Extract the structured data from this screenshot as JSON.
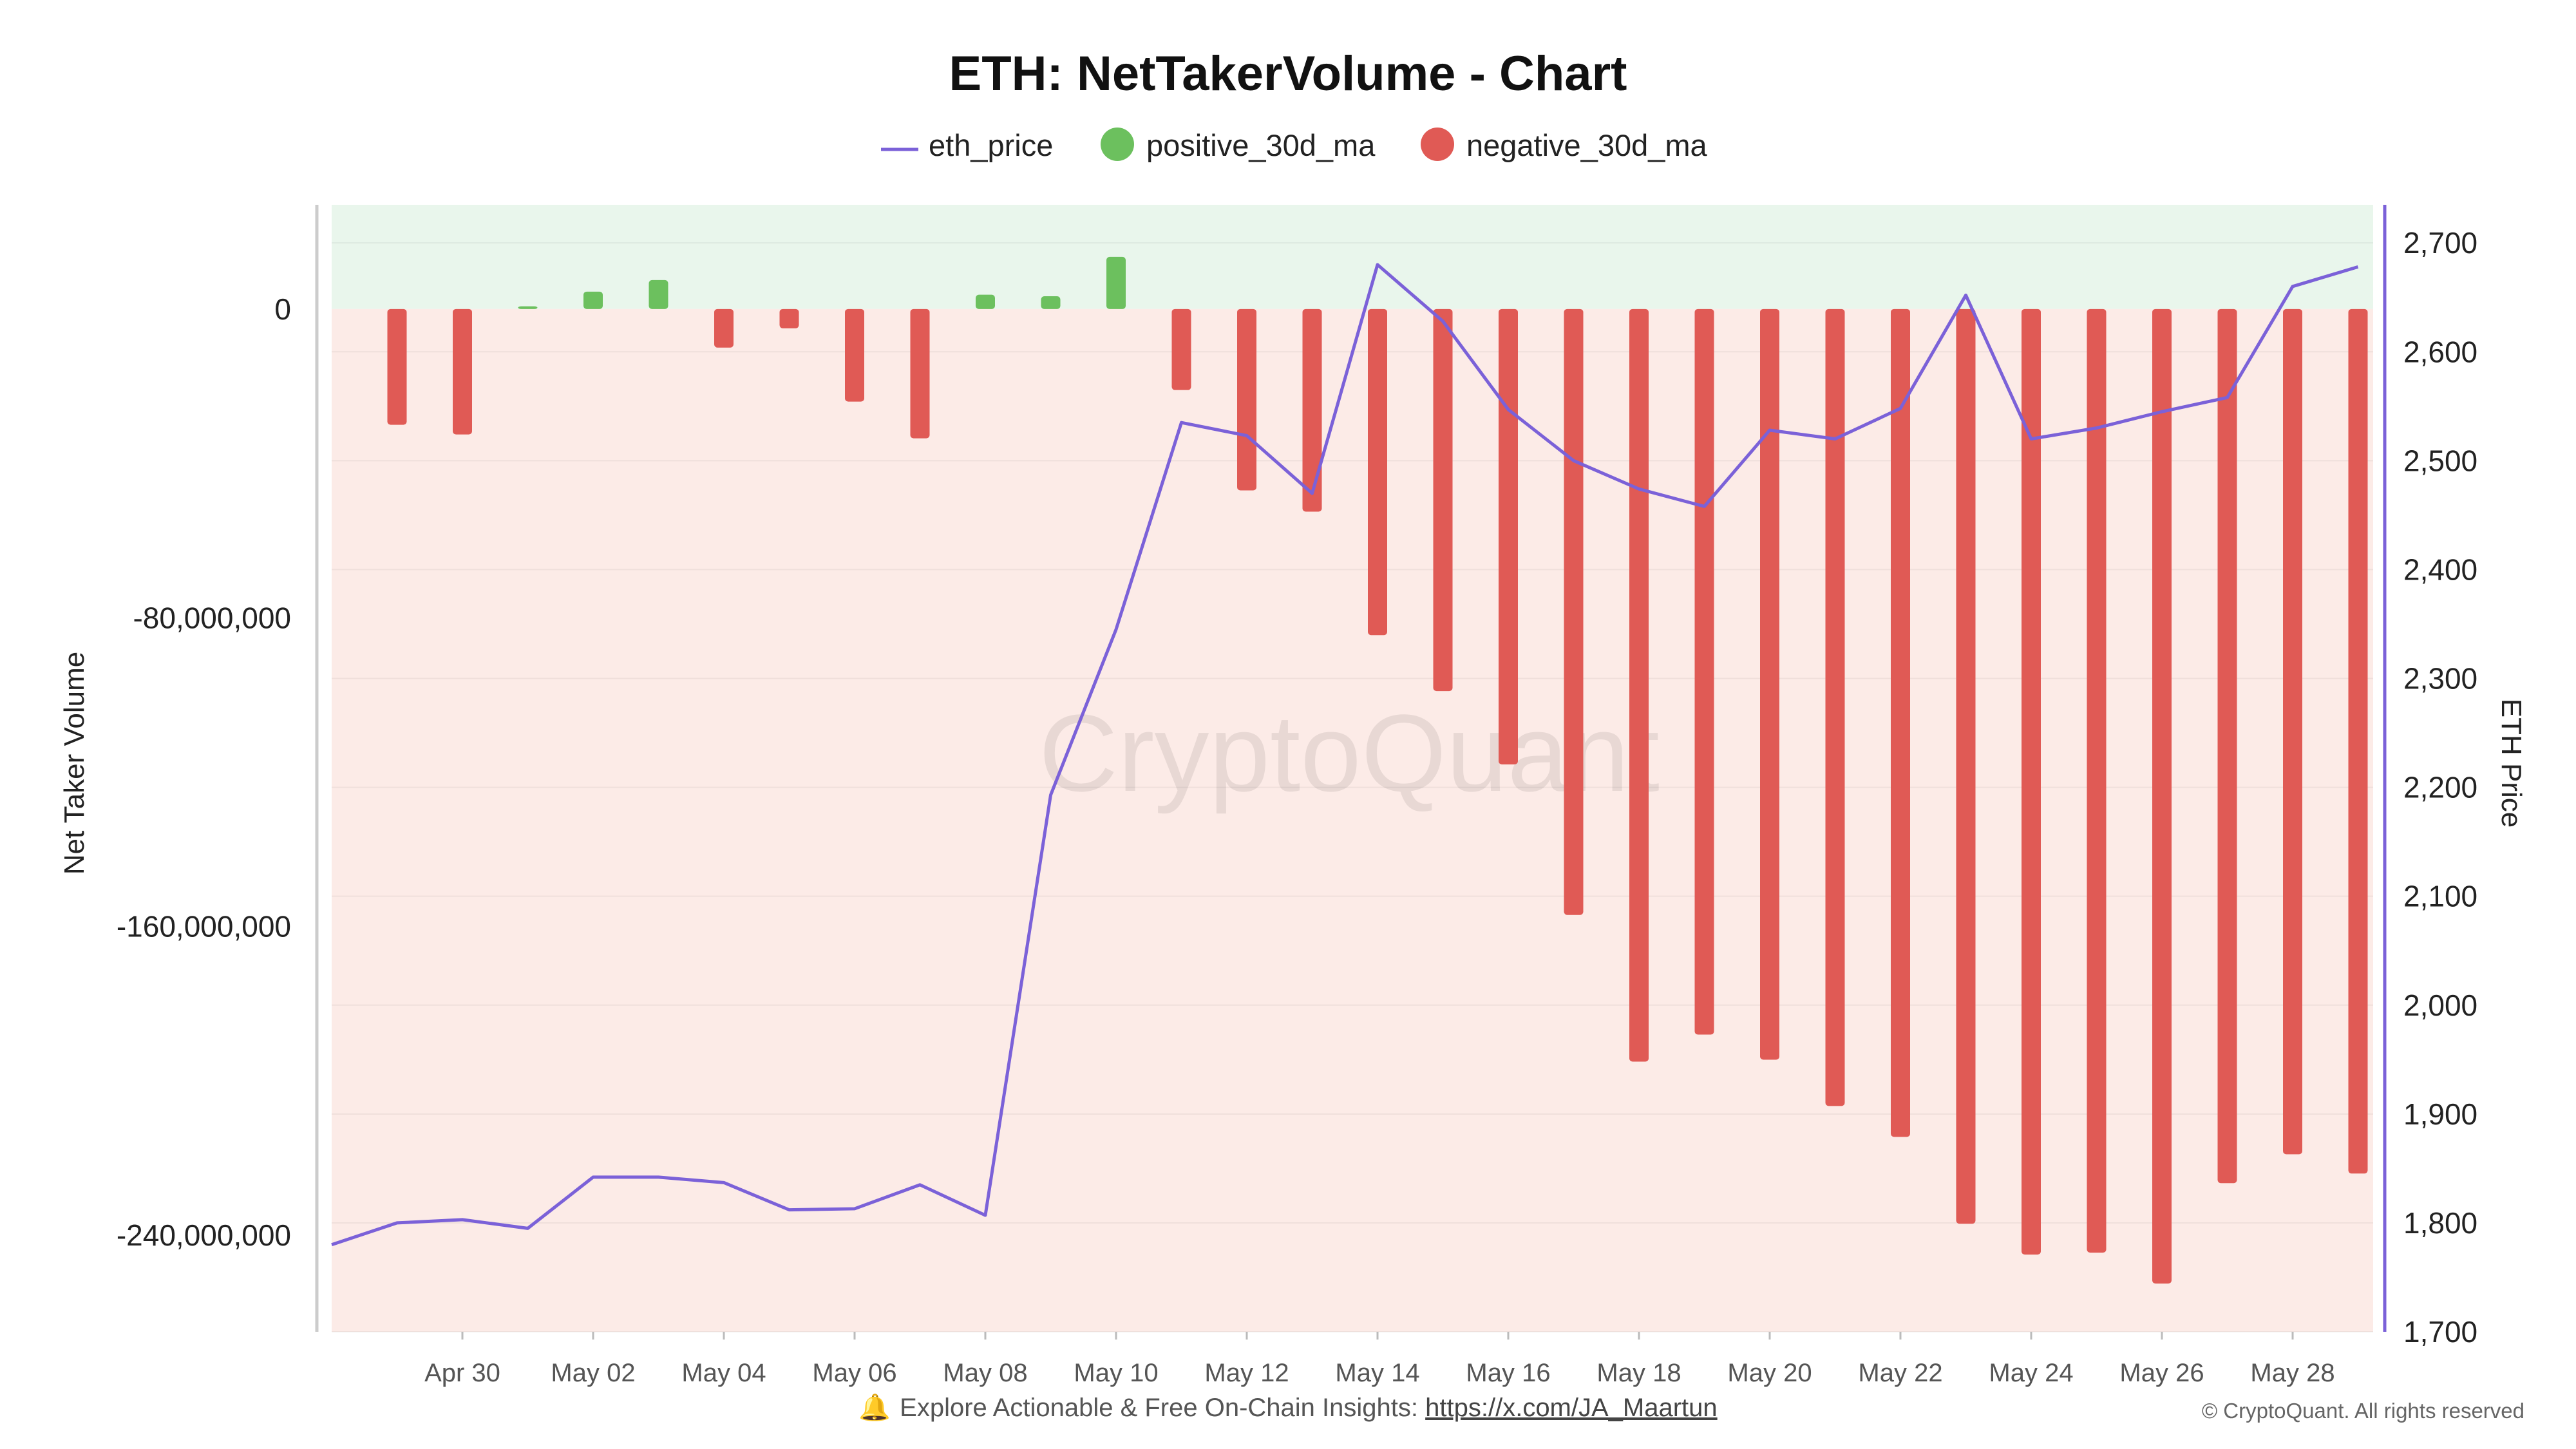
{
  "chart_data": {
    "type": "bar+line",
    "title": "ETH: NetTakerVolume - Chart",
    "legend": [
      {
        "key": "eth_price",
        "label": "eth_price",
        "color": "#7b61d8",
        "marker": "line"
      },
      {
        "key": "positive_30d_ma",
        "label": "positive_30d_ma",
        "color": "#6cc05e",
        "marker": "circle"
      },
      {
        "key": "negative_30d_ma",
        "label": "negative_30d_ma",
        "color": "#e05a55",
        "marker": "circle"
      }
    ],
    "ylabel_left": "Net Taker Volume",
    "ylabel_right": "ETH Price",
    "ylim_left": [
      -265000000,
      27000000
    ],
    "yticks_left": [
      0,
      -80000000,
      -160000000,
      -240000000
    ],
    "ytick_labels_left": [
      "0",
      "-80,000,000",
      "-160,000,000",
      "-240,000,000"
    ],
    "ylim_right": [
      1700,
      2735
    ],
    "yticks_right": [
      1700,
      1800,
      1900,
      2000,
      2100,
      2200,
      2300,
      2400,
      2500,
      2600,
      2700
    ],
    "ytick_labels_right": [
      "1,700",
      "1,800",
      "1,900",
      "2,000",
      "2,100",
      "2,200",
      "2,300",
      "2,400",
      "2,500",
      "2,600",
      "2,700"
    ],
    "dates": [
      "Apr 28",
      "Apr 29",
      "Apr 30",
      "May 01",
      "May 02",
      "May 03",
      "May 04",
      "May 05",
      "May 06",
      "May 07",
      "May 08",
      "May 09",
      "May 10",
      "May 11",
      "May 12",
      "May 13",
      "May 14",
      "May 15",
      "May 16",
      "May 17",
      "May 18",
      "May 19",
      "May 20",
      "May 21",
      "May 22",
      "May 23",
      "May 24",
      "May 25",
      "May 26",
      "May 27",
      "May 28",
      "May 29"
    ],
    "xtick_labels": [
      "Apr 30",
      "May 02",
      "May 04",
      "May 06",
      "May 08",
      "May 10",
      "May 12",
      "May 14",
      "May 16",
      "May 18",
      "May 20",
      "May 22",
      "May 24",
      "May 26",
      "May 28"
    ],
    "eth_price": [
      1780,
      1800,
      1803,
      1795,
      1842,
      1842,
      1837,
      1812,
      1813,
      1835,
      1807,
      2193,
      2345,
      2535,
      2523,
      2470,
      2680,
      2628,
      2547,
      2500,
      2474,
      2458,
      2528,
      2520,
      2548,
      2652,
      2520,
      2530,
      2545,
      2558,
      2660,
      2678
    ],
    "positive_30d_ma": [
      null,
      null,
      null,
      700000,
      4500000,
      7500000,
      null,
      null,
      null,
      null,
      3700000,
      3300000,
      13500000,
      null,
      null,
      null,
      null,
      null,
      null,
      null,
      null,
      null,
      null,
      null,
      null,
      null,
      null,
      null,
      null,
      null,
      null,
      null
    ],
    "negative_30d_ma": [
      null,
      -30000000,
      -32500000,
      null,
      null,
      null,
      -10000000,
      -5000000,
      -24000000,
      -33500000,
      null,
      null,
      null,
      -21000000,
      -47000000,
      -52500000,
      -84500000,
      -99000000,
      -118000000,
      -157000000,
      -195000000,
      -188000000,
      -194500000,
      -206500000,
      -214500000,
      -237000000,
      -245000000,
      -244500000,
      -252500000,
      -226500000,
      -219000000,
      -224000000
    ]
  },
  "watermark": "CryptoQuant",
  "footer": {
    "bell_icon": "bell-icon",
    "text": "Explore Actionable & Free On-Chain Insights:",
    "link": "https://x.com/JA_Maartun"
  },
  "copyright": "© CryptoQuant. All rights reserved",
  "colors": {
    "positive_zone": "#e9f6ec",
    "negative_zone": "#fcebe7",
    "positive_bar": "#6cc05e",
    "negative_bar": "#e05a55",
    "price_line": "#7b61d8",
    "axis": "#cccccc",
    "right_axis": "#7b61d8"
  }
}
